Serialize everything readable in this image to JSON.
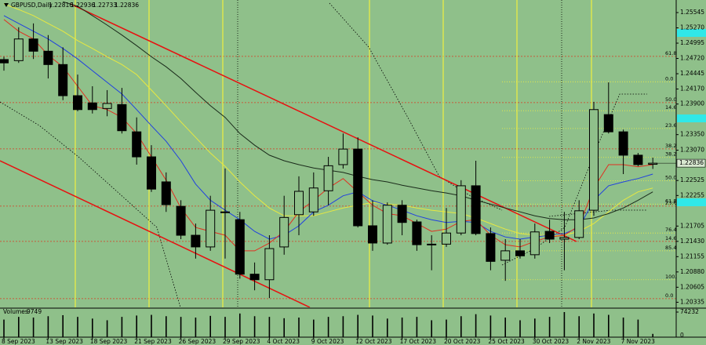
{
  "chart_data": {
    "type": "candlestick",
    "symbol": "GBPUSD,Daily",
    "categories": [
      "8 Sep 2023",
      null,
      null,
      "13 Sep 2023",
      null,
      null,
      "18 Sep 2023",
      null,
      null,
      "21 Sep 2023",
      null,
      null,
      "26 Sep 2023",
      null,
      null,
      "29 Sep 2023",
      null,
      null,
      "4 Oct 2023",
      null,
      null,
      "9 Oct 2023",
      null,
      null,
      "12 Oct 2023",
      null,
      null,
      "17 Oct 2023",
      null,
      null,
      "20 Oct 2023",
      null,
      null,
      "25 Oct 2023",
      null,
      null,
      "30 Oct 2023",
      null,
      null,
      "2 Nov 2023",
      null,
      null,
      "7 Nov 2023",
      null,
      null
    ],
    "open": [
      1.247,
      1.2468,
      1.2507,
      1.2485,
      1.2461,
      1.2405,
      1.2392,
      1.2382,
      1.2389,
      1.234,
      1.2295,
      1.225,
      1.2206,
      1.2154,
      1.2133,
      1.2196,
      1.2182,
      1.2084,
      1.2074,
      1.2133,
      1.2191,
      1.2196,
      1.2234,
      1.2281,
      1.2309,
      1.2171,
      1.214,
      1.2208,
      1.2178,
      1.2138,
      1.2138,
      1.2158,
      1.2243,
      1.2157,
      1.2109,
      1.2126,
      1.2119,
      1.2161,
      1.2147,
      1.215,
      1.2199,
      1.2371,
      1.234,
      1.2298,
      1.22816
    ],
    "high": [
      1.2475,
      1.2528,
      1.2535,
      1.2514,
      1.2492,
      1.2443,
      1.2422,
      1.2415,
      1.2419,
      1.2366,
      1.2316,
      1.2267,
      1.2217,
      1.2175,
      1.2225,
      1.2274,
      1.2196,
      1.2105,
      1.2154,
      1.2225,
      1.226,
      1.2267,
      1.2295,
      1.2337,
      1.233,
      1.2217,
      1.2213,
      1.2217,
      1.2182,
      1.2154,
      1.2203,
      1.2253,
      1.2288,
      1.2168,
      1.2147,
      1.2147,
      1.2175,
      1.2182,
      1.2196,
      1.2217,
      1.2394,
      1.2429,
      1.2344,
      1.2302,
      1.22936
    ],
    "low": [
      1.245,
      1.2464,
      1.2471,
      1.2436,
      1.2397,
      1.2377,
      1.2373,
      1.2368,
      1.2337,
      1.2281,
      1.2232,
      1.2196,
      1.2147,
      1.2112,
      1.2126,
      1.2112,
      1.2076,
      1.2055,
      1.2041,
      1.2119,
      1.2154,
      1.2189,
      1.2208,
      1.2274,
      1.2168,
      1.2126,
      1.2137,
      1.2154,
      1.2126,
      1.2091,
      1.2133,
      1.2154,
      1.2154,
      1.2091,
      1.2072,
      1.2112,
      1.2112,
      1.214,
      1.2091,
      1.2147,
      1.2189,
      1.2337,
      1.2264,
      1.2278,
      1.22733
    ],
    "close": [
      1.2464,
      1.2507,
      1.2485,
      1.2461,
      1.2405,
      1.238,
      1.238,
      1.2391,
      1.2342,
      1.2295,
      1.2237,
      1.2209,
      1.2154,
      1.2133,
      1.2199,
      1.2195,
      1.2084,
      1.2074,
      1.213,
      1.2186,
      1.2233,
      1.2239,
      1.2279,
      1.2309,
      1.2171,
      1.214,
      1.2208,
      1.2177,
      1.2137,
      1.2137,
      1.2158,
      1.2243,
      1.2157,
      1.2107,
      1.2126,
      1.2117,
      1.216,
      1.2147,
      1.215,
      1.2198,
      1.238,
      1.234,
      1.2298,
      1.2281,
      1.22836
    ],
    "colors": {
      "bull": "#8fc08a",
      "bear": "#000000",
      "outline": "#000000"
    },
    "ylim": [
      1.20243,
      1.25771
    ],
    "yticks": [
      1.25545,
      {
        "value": 1.2527,
        "label": "1.25270"
      },
      1.24995,
      {
        "value": 1.2472,
        "label": "1.24720"
      },
      1.24445,
      {
        "value": 1.2417,
        "label": "1.24170"
      },
      {
        "value": 1.239,
        "label": "1.23900"
      },
      {
        "value": 1.2335,
        "label": "1.23350"
      },
      {
        "value": 1.2307,
        "label": "1.23070"
      },
      1.22525,
      1.22255,
      1.21705,
      {
        "value": 1.2143,
        "label": "1.21430"
      },
      1.21155,
      {
        "value": 1.2088,
        "label": "1.20880"
      },
      1.20605,
      1.20335
    ],
    "overlays": [
      {
        "color": "#e8e840",
        "values": [
          1.257,
          1.256,
          1.2549,
          1.2535,
          1.2521,
          1.2504,
          1.249,
          1.2475,
          1.2461,
          1.2443,
          1.2415,
          1.2387,
          1.2358,
          1.233,
          1.2302,
          1.2278,
          1.225,
          1.2225,
          1.2203,
          1.2189,
          1.2189,
          1.2189,
          1.2196,
          1.2203,
          1.2208,
          1.2213,
          1.221,
          1.2208,
          1.2203,
          1.2199,
          1.2196,
          1.2193,
          1.2185,
          1.2175,
          1.2165,
          1.2157,
          1.2154,
          1.2154,
          1.2154,
          1.2161,
          1.2175,
          1.2196,
          1.2217,
          1.2232,
          1.2239
        ]
      },
      {
        "color": "#1a2a1a",
        "values": [
          null,
          null,
          null,
          null,
          1.2574,
          1.2566,
          1.2549,
          1.2532,
          1.2514,
          1.2495,
          1.2475,
          1.2457,
          1.2436,
          1.2411,
          1.2387,
          1.2366,
          1.2337,
          1.2316,
          1.2298,
          1.2288,
          1.2281,
          1.2275,
          1.2271,
          1.2267,
          1.226,
          1.2254,
          1.225,
          1.2244,
          1.2239,
          1.2234,
          1.223,
          1.2225,
          1.2217,
          1.221,
          1.2203,
          1.2196,
          1.2189,
          1.2184,
          1.2182,
          1.2182,
          1.2185,
          1.2193,
          1.2203,
          1.2217,
          1.2232
        ]
      },
      {
        "color": "#2040e0",
        "values": [
          1.2549,
          1.2535,
          1.2521,
          1.2507,
          1.249,
          1.2471,
          1.245,
          1.2429,
          1.2408,
          1.238,
          1.2351,
          1.2323,
          1.2288,
          1.2246,
          1.2217,
          1.2199,
          1.2182,
          1.2161,
          1.2147,
          1.2154,
          1.2171,
          1.2196,
          1.2208,
          1.2225,
          1.2232,
          1.2216,
          1.2208,
          1.2199,
          1.2189,
          1.2182,
          1.2177,
          1.2179,
          1.2177,
          1.2161,
          1.2151,
          1.2147,
          1.2151,
          1.2154,
          1.2157,
          1.2168,
          1.2217,
          1.2243,
          1.225,
          1.2256,
          1.2264
        ]
      },
      {
        "color": "#e03020",
        "values": [
          1.2542,
          1.2521,
          1.2507,
          1.2478,
          1.2457,
          1.2422,
          1.2387,
          1.238,
          1.2366,
          1.2337,
          1.2295,
          1.2253,
          1.2203,
          1.2168,
          1.2161,
          1.2154,
          1.2126,
          1.2126,
          1.214,
          1.2161,
          1.2196,
          1.2217,
          1.2239,
          1.2256,
          1.2232,
          1.2208,
          1.2193,
          1.2189,
          1.2175,
          1.2161,
          1.2165,
          1.2179,
          1.2182,
          1.2154,
          1.2137,
          1.2133,
          1.2143,
          1.2151,
          1.2154,
          1.2171,
          1.2239,
          1.2281,
          1.2281,
          1.2277,
          1.2281
        ]
      }
    ],
    "fibonacci": [
      {
        "color": "#d83a20",
        "start": 1.204,
        "end": 1.2745,
        "levels": [
          {
            "value": 0,
            "label": "0.0"
          },
          14.6,
          23.6,
          38.2,
          {
            "value": 50,
            "label": "50.0"
          },
          61.8
        ]
      },
      {
        "color": "#f0f040",
        "start": 1.243,
        "end": 1.2074,
        "levels": [
          {
            "value": 0,
            "label": "0.0"
          },
          14.6,
          23.6,
          38.2,
          {
            "value": 50,
            "label": "50.0"
          },
          61.8,
          76.4,
          85.4,
          {
            "value": 100,
            "label": "100.0"
          }
        ]
      }
    ],
    "volume": {
      "label": "Volumes",
      "color": "#000000",
      "values": [
        52000,
        60000,
        58000,
        62000,
        65000,
        60000,
        55000,
        50000,
        60000,
        64000,
        66000,
        62000,
        60000,
        58000,
        63000,
        60000,
        70000,
        62000,
        60000,
        56000,
        58000,
        52000,
        60000,
        62000,
        66000,
        64000,
        55000,
        58000,
        60000,
        50000,
        52000,
        62000,
        68000,
        64000,
        58000,
        50000,
        55000,
        60000,
        74232,
        62000,
        70000,
        66000,
        58000,
        52000,
        9749
      ],
      "ylim": [
        0,
        74232
      ],
      "yticks": [
        0,
        74232
      ]
    }
  }
}
